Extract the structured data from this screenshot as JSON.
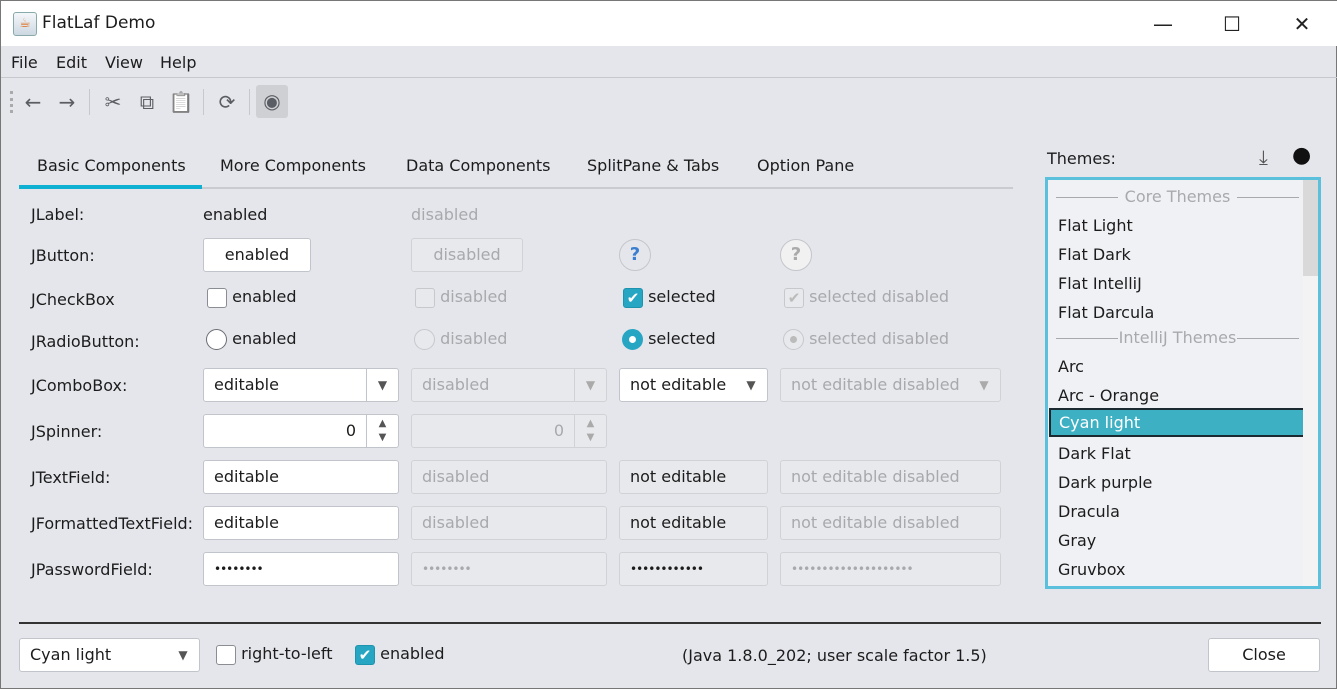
{
  "window": {
    "title": "FlatLaf Demo",
    "minimize": "—",
    "maximize": "☐",
    "close": "✕"
  },
  "menu": [
    "File",
    "Edit",
    "View",
    "Help"
  ],
  "toolbar": {
    "back": "←",
    "forward": "→",
    "cut": "✂",
    "copy": "⧉",
    "paste": "📋",
    "refresh": "⟳",
    "eye": "◉"
  },
  "tabs": [
    "Basic Components",
    "More Components",
    "Data Components",
    "SplitPane & Tabs",
    "Option Pane"
  ],
  "rows": {
    "label": {
      "name": "JLabel:",
      "enabled": "enabled",
      "disabled": "disabled"
    },
    "button": {
      "name": "JButton:",
      "enabled": "enabled",
      "disabled": "disabled",
      "help": "?"
    },
    "checkbox": {
      "name": "JCheckBox",
      "enabled": "enabled",
      "disabled": "disabled",
      "selected": "selected",
      "selected_disabled": "selected disabled",
      "check": "✔"
    },
    "radio": {
      "name": "JRadioButton:",
      "enabled": "enabled",
      "disabled": "disabled",
      "selected": "selected",
      "selected_disabled": "selected disabled"
    },
    "combo": {
      "name": "JComboBox:",
      "editable": "editable",
      "disabled": "disabled",
      "not_editable": "not editable",
      "not_editable_disabled": "not editable disabled",
      "arrow": "▼"
    },
    "spinner": {
      "name": "JSpinner:",
      "value": "0",
      "disabled_value": "0",
      "arrows": "▲▼"
    },
    "textfield": {
      "name": "JTextField:",
      "editable": "editable",
      "disabled": "disabled",
      "not_editable": "not editable",
      "not_editable_disabled": "not editable disabled"
    },
    "formatted": {
      "name": "JFormattedTextField:",
      "editable": "editable",
      "disabled": "disabled",
      "not_editable": "not editable",
      "not_editable_disabled": "not editable disabled"
    },
    "password": {
      "name": "JPasswordField:",
      "v1": "••••••••",
      "v2": "••••••••",
      "v3": "••••••••••••",
      "v4": "••••••••••••••••••••"
    }
  },
  "themes": {
    "label": "Themes:",
    "download": "⤓",
    "github": "●",
    "core_header": "Core Themes",
    "intellij_header": "IntelliJ Themes",
    "core": [
      "Flat Light",
      "Flat Dark",
      "Flat IntelliJ",
      "Flat Darcula"
    ],
    "intellij": [
      "Arc",
      "Arc - Orange",
      "Cyan light",
      "Dark Flat",
      "Dark purple",
      "Dracula",
      "Gray",
      "Gruvbox"
    ],
    "selected": "Cyan light"
  },
  "bottom": {
    "theme_combo": "Cyan light",
    "rtl": "right-to-left",
    "enabled": "enabled",
    "info": "(Java 1.8.0_202;  user scale factor 1.5)",
    "close": "Close"
  },
  "colors": {
    "accent": "#27a6c4",
    "selection": "#3db0c3",
    "background": "#e5e6eb"
  }
}
